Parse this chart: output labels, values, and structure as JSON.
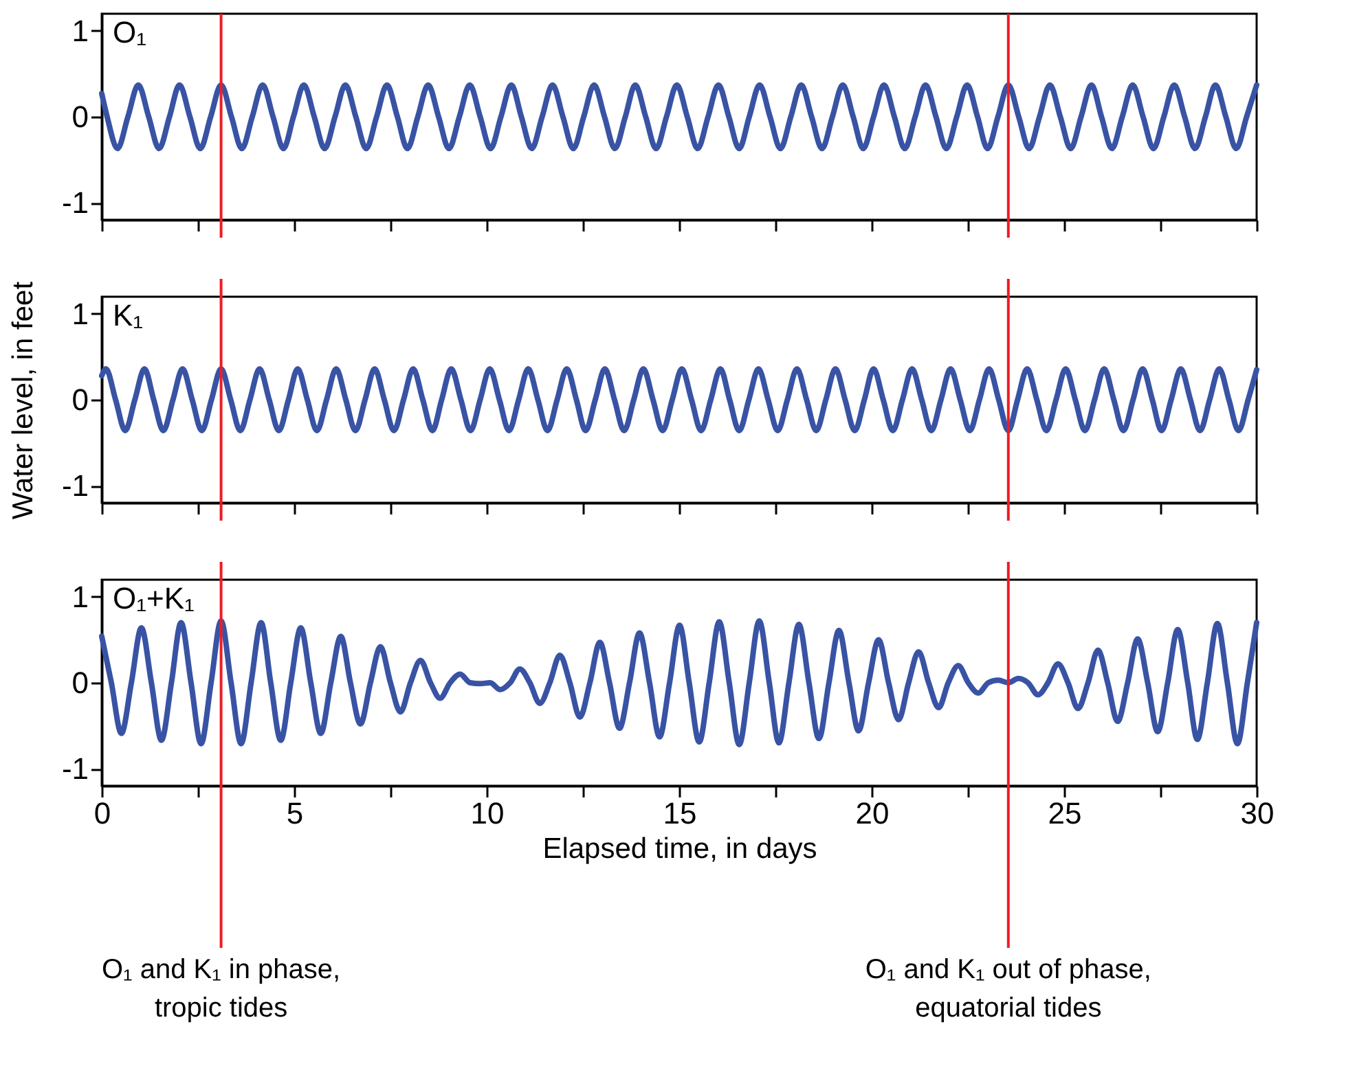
{
  "chart_data": [
    {
      "type": "line",
      "title": "O₁",
      "xlim": [
        0,
        30
      ],
      "ylim": [
        -1.2,
        1.2
      ],
      "yticks": [
        -1,
        0,
        1
      ],
      "xticks": [
        0,
        {
          "value": 2.5,
          "label": null
        },
        5,
        {
          "value": 7.5,
          "label": null
        },
        10,
        {
          "value": 12.5,
          "label": null
        },
        15,
        {
          "value": 17.5,
          "label": null
        },
        20,
        {
          "value": 22.5,
          "label": null
        },
        25,
        {
          "value": 27.5,
          "label": null
        },
        30
      ],
      "tick_labels": "y",
      "ref_lines": [
        {
          "axis": "x",
          "value": 3.1,
          "color": "#ee1c25"
        },
        {
          "axis": "x",
          "value": 23.55,
          "color": "#ee1c25"
        }
      ],
      "series": [
        {
          "color": "#3953a4",
          "x": [
            0,
            0.14,
            0.41,
            0.68,
            0.95,
            1.22,
            1.49,
            1.76,
            2.02,
            2.29,
            2.56,
            2.83,
            3.1,
            3.37,
            3.64,
            3.91,
            4.18,
            4.45,
            4.72,
            4.98,
            5.25,
            5.52,
            5.79,
            6.06,
            6.33,
            6.6,
            6.87,
            7.14,
            7.41,
            7.68,
            7.94,
            8.21,
            8.48,
            8.75,
            9.02,
            9.29,
            9.56,
            9.83,
            10.1,
            10.37,
            10.64,
            10.9,
            11.17,
            11.44,
            11.71,
            11.98,
            12.25,
            12.52,
            12.79,
            13.06,
            13.33,
            13.6,
            13.86,
            14.13,
            14.4,
            14.67,
            14.94,
            15.21,
            15.48,
            15.75,
            16.02,
            16.29,
            16.56,
            16.82,
            17.09,
            17.36,
            17.63,
            17.9,
            18.17,
            18.44,
            18.71,
            18.98,
            19.25,
            19.52,
            19.78,
            20.05,
            20.32,
            20.59,
            20.86,
            21.13,
            21.4,
            21.67,
            21.94,
            22.21,
            22.48,
            22.75,
            23.01,
            23.28,
            23.55,
            23.82,
            24.09,
            24.36,
            24.63,
            24.9,
            25.17,
            25.44,
            25.71,
            25.97,
            26.24,
            26.51,
            26.78,
            27.05,
            27.32,
            27.59,
            27.86,
            28.13,
            28.4,
            28.67,
            28.93,
            29.2,
            29.47,
            29.74,
            30
          ],
          "values": [
            0.27,
            0,
            -0.37,
            0,
            0.37,
            0,
            -0.37,
            0,
            0.37,
            0,
            -0.37,
            0,
            0.37,
            0,
            -0.37,
            0,
            0.37,
            0,
            -0.37,
            0,
            0.37,
            0,
            -0.37,
            0,
            0.37,
            0,
            -0.37,
            0,
            0.37,
            0,
            -0.37,
            0,
            0.37,
            0,
            -0.37,
            0,
            0.37,
            0,
            -0.37,
            0,
            0.37,
            0,
            -0.37,
            0,
            0.37,
            0,
            -0.37,
            0,
            0.37,
            0,
            -0.37,
            0,
            0.37,
            0,
            -0.37,
            0,
            0.37,
            0,
            -0.37,
            0,
            0.37,
            0,
            -0.37,
            0,
            0.37,
            0,
            -0.37,
            0,
            0.37,
            0,
            -0.37,
            0,
            0.37,
            0,
            -0.37,
            0,
            0.37,
            0,
            -0.37,
            0,
            0.37,
            0,
            -0.37,
            0,
            0.37,
            0,
            -0.37,
            0,
            0.37,
            0,
            -0.37,
            0,
            0.37,
            0,
            -0.37,
            0,
            0.37,
            0,
            -0.37,
            0,
            0.37,
            0,
            -0.37,
            0,
            0.37,
            0,
            -0.37,
            0,
            0.37,
            0,
            -0.37,
            0,
            0.37
          ]
        }
      ]
    },
    {
      "type": "line",
      "title": "K₁",
      "ylabel": "Water level, in feet",
      "xlim": [
        0,
        30
      ],
      "ylim": [
        -1.2,
        1.2
      ],
      "yticks": [
        -1,
        0,
        1
      ],
      "xticks": [
        0,
        {
          "value": 2.5,
          "label": null
        },
        5,
        {
          "value": 7.5,
          "label": null
        },
        10,
        {
          "value": 12.5,
          "label": null
        },
        15,
        {
          "value": 17.5,
          "label": null
        },
        20,
        {
          "value": 22.5,
          "label": null
        },
        25,
        {
          "value": 27.5,
          "label": null
        },
        30
      ],
      "tick_labels": "y",
      "ref_lines": [
        {
          "axis": "x",
          "value": 3.1,
          "color": "#ee1c25"
        },
        {
          "axis": "x",
          "value": 23.55,
          "color": "#ee1c25"
        }
      ],
      "series": [
        {
          "color": "#3953a4",
          "x": [
            0,
            0.11,
            0.36,
            0.61,
            0.86,
            1.11,
            1.35,
            1.6,
            1.85,
            2.1,
            2.35,
            2.6,
            2.85,
            3.1,
            3.35,
            3.6,
            3.85,
            4.1,
            4.35,
            4.6,
            4.85,
            5.09,
            5.34,
            5.59,
            5.84,
            6.09,
            6.34,
            6.59,
            6.84,
            7.09,
            7.34,
            7.59,
            7.84,
            8.09,
            8.34,
            8.59,
            8.83,
            9.08,
            9.33,
            9.58,
            9.83,
            10.08,
            10.33,
            10.58,
            10.83,
            11.08,
            11.33,
            11.58,
            11.83,
            12.08,
            12.33,
            12.57,
            12.82,
            13.07,
            13.32,
            13.57,
            13.82,
            14.07,
            14.32,
            14.57,
            14.82,
            15.07,
            15.32,
            15.57,
            15.82,
            16.07,
            16.31,
            16.56,
            16.81,
            17.06,
            17.31,
            17.56,
            17.81,
            18.06,
            18.31,
            18.56,
            18.81,
            19.06,
            19.31,
            19.56,
            19.81,
            20.05,
            20.3,
            20.55,
            20.8,
            21.05,
            21.3,
            21.55,
            21.8,
            22.05,
            22.3,
            22.55,
            22.8,
            23.05,
            23.3,
            23.55,
            23.79,
            24.04,
            24.29,
            24.54,
            24.79,
            25.04,
            25.29,
            25.54,
            25.79,
            26.04,
            26.29,
            26.54,
            26.79,
            27.04,
            27.29,
            27.53,
            27.78,
            28.03,
            28.28,
            28.53,
            28.78,
            29.03,
            29.28,
            29.53,
            29.78,
            30
          ],
          "values": [
            0.28,
            0.36,
            0,
            -0.36,
            0,
            0.36,
            0,
            -0.36,
            0,
            0.36,
            0,
            -0.36,
            0,
            0.36,
            0,
            -0.36,
            0,
            0.36,
            0,
            -0.36,
            0,
            0.36,
            0,
            -0.36,
            0,
            0.36,
            0,
            -0.36,
            0,
            0.36,
            0,
            -0.36,
            0,
            0.36,
            0,
            -0.36,
            0,
            0.36,
            0,
            -0.36,
            0,
            0.36,
            0,
            -0.36,
            0,
            0.36,
            0,
            -0.36,
            0,
            0.36,
            0,
            -0.36,
            0,
            0.36,
            0,
            -0.36,
            0,
            0.36,
            0,
            -0.36,
            0,
            0.36,
            0,
            -0.36,
            0,
            0.36,
            0,
            -0.36,
            0,
            0.36,
            0,
            -0.36,
            0,
            0.36,
            0,
            -0.36,
            0,
            0.36,
            0,
            -0.36,
            0,
            0.36,
            0,
            -0.36,
            0,
            0.36,
            0,
            -0.36,
            0,
            0.36,
            0,
            -0.36,
            0,
            0.36,
            0,
            -0.36,
            0,
            0.36,
            0,
            -0.36,
            0,
            0.36,
            0,
            -0.36,
            0,
            0.36,
            0,
            -0.36,
            0,
            0.36,
            0,
            -0.36,
            0,
            0.36,
            0,
            -0.36,
            0,
            0.36,
            0,
            -0.36,
            0,
            0.35
          ]
        }
      ]
    },
    {
      "type": "line",
      "title": "O₁+K₁",
      "xlabel": "Elapsed time, in days",
      "xlim": [
        0,
        30
      ],
      "ylim": [
        -1.2,
        1.2
      ],
      "yticks": [
        -1,
        0,
        1
      ],
      "xticks": [
        0,
        {
          "value": 2.5,
          "label": null
        },
        5,
        {
          "value": 7.5,
          "label": null
        },
        10,
        {
          "value": 12.5,
          "label": null
        },
        15,
        {
          "value": 17.5,
          "label": null
        },
        20,
        {
          "value": 22.5,
          "label": null
        },
        25,
        {
          "value": 27.5,
          "label": null
        },
        30
      ],
      "ref_lines": [
        {
          "axis": "x",
          "value": 3.1,
          "color": "#ee1c25",
          "label": "O₁ and K₁ in phase, tropic tides"
        },
        {
          "axis": "x",
          "value": 23.55,
          "color": "#ee1c25",
          "label": "O₁ and K₁ out of phase, equatorial tides"
        }
      ],
      "series": [
        {
          "color": "#3953a4",
          "x": [
            0,
            0.25,
            0.51,
            0.77,
            1.03,
            1.29,
            1.55,
            1.81,
            2.06,
            2.32,
            2.58,
            2.84,
            3.1,
            3.36,
            3.62,
            3.88,
            4.14,
            4.39,
            4.65,
            4.91,
            5.17,
            5.43,
            5.69,
            5.95,
            6.21,
            6.46,
            6.72,
            6.98,
            7.24,
            7.5,
            7.76,
            8.02,
            8.28,
            8.54,
            8.79,
            9.05,
            9.31,
            9.57,
            9.83,
            10.09,
            10.35,
            10.61,
            10.86,
            11.12,
            11.38,
            11.64,
            11.9,
            12.16,
            12.42,
            12.68,
            12.94,
            13.19,
            13.45,
            13.71,
            13.97,
            14.23,
            14.49,
            14.75,
            15.01,
            15.26,
            15.52,
            15.78,
            16.04,
            16.3,
            16.56,
            16.82,
            17.08,
            17.34,
            17.59,
            17.85,
            18.11,
            18.37,
            18.63,
            18.89,
            19.15,
            19.41,
            19.66,
            19.92,
            20.18,
            20.44,
            20.7,
            20.96,
            21.22,
            21.48,
            21.74,
            21.99,
            22.25,
            22.51,
            22.77,
            23.03,
            23.29,
            23.55,
            23.81,
            24.06,
            24.32,
            24.58,
            24.84,
            25.1,
            25.36,
            25.62,
            25.88,
            26.13,
            26.39,
            26.65,
            26.91,
            27.17,
            27.43,
            27.69,
            27.95,
            28.21,
            28.46,
            28.72,
            28.98,
            29.24,
            29.5,
            29.76,
            30
          ],
          "values": [
            0.54,
            0,
            -0.59,
            0,
            0.64,
            0,
            -0.67,
            0,
            0.7,
            0,
            -0.71,
            0,
            0.72,
            0,
            -0.71,
            0,
            0.7,
            0,
            -0.67,
            0,
            0.64,
            0,
            -0.59,
            0,
            0.54,
            0,
            -0.48,
            0,
            0.42,
            0,
            -0.34,
            0,
            0.26,
            0,
            -0.18,
            0,
            0.1,
            0,
            -0.01,
            0,
            -0.08,
            0,
            0.16,
            0,
            -0.24,
            0,
            0.32,
            0,
            -0.4,
            0,
            0.47,
            0,
            -0.53,
            0,
            0.58,
            0,
            -0.63,
            0,
            0.67,
            0,
            -0.69,
            0,
            0.71,
            0,
            -0.72,
            0,
            0.72,
            0,
            -0.7,
            0,
            0.68,
            0,
            -0.65,
            0,
            0.61,
            0,
            -0.56,
            0,
            0.5,
            0,
            -0.43,
            0,
            0.36,
            0,
            -0.29,
            0,
            0.2,
            0,
            -0.12,
            0,
            0.03,
            0,
            0.05,
            0,
            -0.14,
            0,
            0.22,
            0,
            -0.3,
            0,
            0.38,
            0,
            -0.45,
            0,
            0.51,
            0,
            -0.57,
            0,
            0.62,
            0,
            -0.66,
            0,
            0.69,
            0,
            -0.71,
            0,
            0.7
          ]
        }
      ]
    }
  ]
}
